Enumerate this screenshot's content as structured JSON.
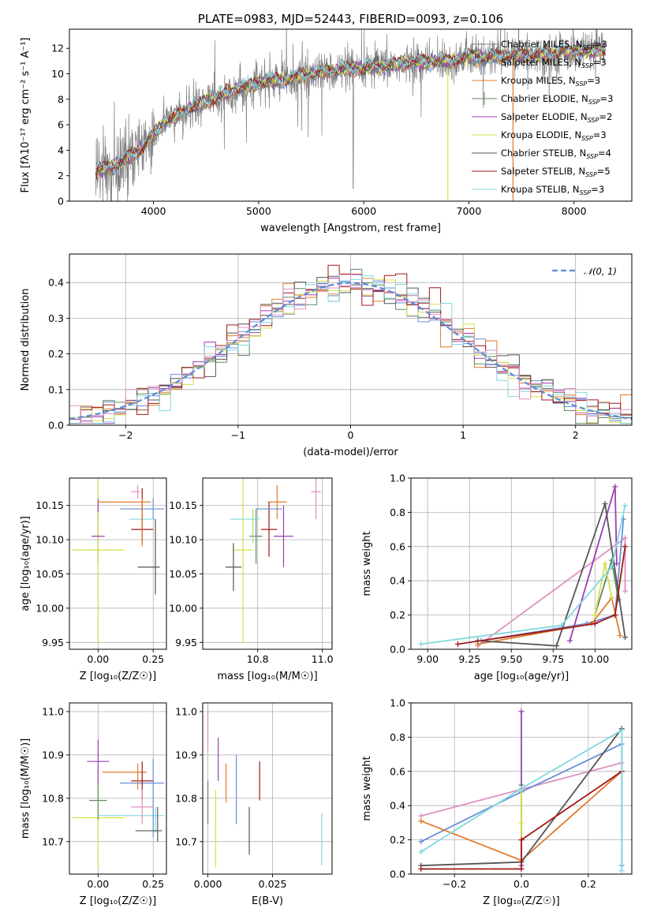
{
  "chart_data": [
    {
      "id": "spectrum",
      "type": "line",
      "title": "PLATE=0983, MJD=52443, FIBERID=0093, z=0.106",
      "xlabel": "wavelength [Angstrom, rest frame]",
      "ylabel": "Flux [fλ10⁻¹⁷ erg cm⁻² s⁻¹ A⁻¹]",
      "xlim": [
        3200,
        8550
      ],
      "ylim": [
        0,
        13.5
      ],
      "xticks": [
        4000,
        5000,
        6000,
        7000,
        8000
      ],
      "yticks": [
        0,
        2,
        4,
        6,
        8,
        10,
        12
      ],
      "grid": false,
      "legend": "upper right",
      "continuum": {
        "x": [
          3450,
          3600,
          3700,
          3800,
          3900,
          4000,
          4100,
          4200,
          4300,
          4400,
          4500,
          4600,
          4700,
          4800,
          4900,
          5000,
          5100,
          5200,
          5300,
          5400,
          5500,
          5600,
          5700,
          5800,
          5900,
          6000,
          6100,
          6200,
          6300,
          6400,
          6500,
          6600,
          6700,
          6800,
          6900,
          7000,
          7100,
          7200,
          7300,
          7400,
          7500,
          7600,
          7700,
          7800,
          7900,
          8000,
          8100,
          8200,
          8300
        ],
        "y": [
          2.3,
          2.7,
          3.1,
          3.6,
          4.2,
          5.2,
          6.2,
          6.6,
          7.0,
          7.5,
          7.8,
          8.1,
          8.4,
          8.8,
          9.0,
          9.3,
          9.4,
          9.5,
          9.6,
          9.8,
          9.9,
          10.1,
          10.2,
          10.3,
          10.3,
          10.4,
          10.5,
          10.6,
          10.7,
          10.8,
          10.9,
          10.9,
          11.0,
          11.0,
          11.1,
          11.3,
          11.2,
          11.3,
          11.4,
          11.4,
          11.5,
          11.5,
          11.5,
          11.6,
          11.7,
          11.7,
          11.8,
          11.8,
          11.9
        ]
      },
      "series": [
        {
          "name": "Chabrier MILES, N$_{SSP}$=3",
          "color": "#7f7f7f"
        },
        {
          "name": "Salpeter MILES, N$_{SSP}$=3",
          "color": "#6688cc"
        },
        {
          "name": "Kroupa MILES, N$_{SSP}$=3",
          "color": "#e07b2c"
        },
        {
          "name": "Chabrier ELODIE, N$_{SSP}$=3",
          "color": "#5f8a5f"
        },
        {
          "name": "Salpeter ELODIE, N$_{SSP}$=2",
          "color": "#9a3fb0"
        },
        {
          "name": "Kroupa ELODIE, N$_{SSP}$=3",
          "color": "#d8e04a"
        },
        {
          "name": "Chabrier STELIB, N$_{SSP}$=4",
          "color": "#555555"
        },
        {
          "name": "Salpeter STELIB, N$_{SSP}$=5",
          "color": "#a01818"
        },
        {
          "name": "Kroupa STELIB, N$_{SSP}$=3",
          "color": "#80d8e0"
        }
      ]
    },
    {
      "id": "residuals",
      "type": "area",
      "xlabel": "(data-model)/error",
      "ylabel": "Normed distribution",
      "xlim": [
        -2.5,
        2.5
      ],
      "ylim": [
        0,
        0.48
      ],
      "xticks": [
        -2,
        -1,
        0,
        1,
        2
      ],
      "yticks": [
        0.0,
        0.1,
        0.2,
        0.3,
        0.4
      ],
      "grid": true,
      "legend": "upper right",
      "reference": {
        "name": "$\\mathcal{N}(0,1)$",
        "color": "#5b8ad8",
        "mean": 0,
        "std": 1
      },
      "bin_width": 0.1,
      "series_colors": [
        "#6a8fd8",
        "#e07b2c",
        "#5f8a5f",
        "#9a3fb0",
        "#d8e04a",
        "#555555",
        "#a01818",
        "#80d8e0",
        "#e090c0"
      ]
    },
    {
      "id": "age_vs_Z",
      "type": "scatter",
      "xlabel": "Z [log₁₀(Z/Z☉)]",
      "ylabel": "age  [log₁₀(age/yr)]",
      "xlim": [
        -0.13,
        0.31
      ],
      "ylim": [
        9.94,
        10.19
      ],
      "xticks": [
        0.0,
        0.25
      ],
      "xticklabels": [
        "0.00",
        "0.25"
      ],
      "yticks": [
        9.95,
        10.0,
        10.05,
        10.1,
        10.15
      ],
      "yticklabels": [
        "9.95",
        "10.00",
        "10.05",
        "10.10",
        "10.15"
      ],
      "grid": true,
      "points": [
        {
          "x": 0.0,
          "y": 10.105,
          "xerr": 0.0,
          "yerr": 0.04,
          "color": "#555555"
        },
        {
          "x": 0.0,
          "y": 10.085,
          "xerr": 0.0,
          "yerr": 0.0,
          "color": "#9a3fb0"
        },
        {
          "x": 0.0,
          "y": 10.085,
          "xerr": 0.05,
          "yerr": 0.135,
          "color": "#d8e04a"
        },
        {
          "x": 0.0,
          "y": 10.085,
          "xerr": 0.12,
          "yerr": 0.0,
          "color": "#d8e04a"
        },
        {
          "x": 0.0,
          "y": 10.105,
          "xerr": 0.03,
          "yerr": 0.0,
          "color": "#9a3fb0"
        },
        {
          "x": 0.0,
          "y": 10.15,
          "xerr": 0.0,
          "yerr": 0.01,
          "color": "#9a3fb0"
        },
        {
          "x": 0.12,
          "y": 10.155,
          "xerr": 0.12,
          "yerr": 0.0,
          "color": "#e07b2c"
        },
        {
          "x": 0.2,
          "y": 10.145,
          "xerr": 0.1,
          "yerr": 0.0,
          "color": "#6a8fd8"
        },
        {
          "x": 0.25,
          "y": 10.145,
          "xerr": 0.0,
          "yerr": 0.015,
          "color": "#6a8fd8"
        },
        {
          "x": 0.2,
          "y": 10.13,
          "xerr": 0.06,
          "yerr": 0.0,
          "color": "#80d8e0"
        },
        {
          "x": 0.2,
          "y": 10.115,
          "xerr": 0.05,
          "yerr": 0.0,
          "color": "#a01818"
        },
        {
          "x": 0.2,
          "y": 10.135,
          "xerr": 0.0,
          "yerr": 0.04,
          "color": "#a01818"
        },
        {
          "x": 0.18,
          "y": 10.17,
          "xerr": 0.0,
          "yerr": 0.01,
          "color": "#e090c0"
        },
        {
          "x": 0.17,
          "y": 10.17,
          "xerr": 0.02,
          "yerr": 0.0,
          "color": "#e090c0"
        },
        {
          "x": 0.23,
          "y": 10.06,
          "xerr": 0.05,
          "yerr": 0.0,
          "color": "#555555"
        },
        {
          "x": 0.26,
          "y": 10.075,
          "xerr": 0.0,
          "yerr": 0.055,
          "color": "#555555"
        },
        {
          "x": 0.2,
          "y": 10.125,
          "xerr": 0.0,
          "yerr": 0.035,
          "color": "#e07b2c"
        }
      ]
    },
    {
      "id": "age_vs_mass",
      "type": "scatter",
      "xlabel": "mass [log₁₀(M/M☉)]",
      "xlim": [
        10.63,
        11.03
      ],
      "ylim": [
        9.94,
        10.19
      ],
      "xticks": [
        10.8,
        11.0
      ],
      "xticklabels": [
        "10.8",
        "11.0"
      ],
      "yticks": [
        9.95,
        10.0,
        10.05,
        10.1,
        10.15
      ],
      "yticklabels": [
        "9.95",
        "10.00",
        "10.05",
        "10.10",
        "10.15"
      ],
      "grid": true,
      "points": [
        {
          "x": 10.755,
          "y": 10.085,
          "xerr": 0.03,
          "yerr": 0.135,
          "color": "#d8e04a"
        },
        {
          "x": 10.795,
          "y": 10.105,
          "xerr": 0.02,
          "yerr": 0.04,
          "color": "#5f8a5f"
        },
        {
          "x": 10.76,
          "y": 10.13,
          "xerr": 0.045,
          "yerr": 0.0,
          "color": "#80d8e0"
        },
        {
          "x": 10.785,
          "y": 10.12,
          "xerr": 0.0,
          "yerr": 0.025,
          "color": "#9fe070"
        },
        {
          "x": 10.725,
          "y": 10.06,
          "xerr": 0.025,
          "yerr": 0.035,
          "color": "#555555"
        },
        {
          "x": 10.835,
          "y": 10.115,
          "xerr": 0.025,
          "yerr": 0.04,
          "color": "#a01818"
        },
        {
          "x": 10.86,
          "y": 10.155,
          "xerr": 0.03,
          "yerr": 0.025,
          "color": "#e07b2c"
        },
        {
          "x": 10.835,
          "y": 10.145,
          "xerr": 0.04,
          "yerr": 0.0,
          "color": "#6a8fd8"
        },
        {
          "x": 10.88,
          "y": 10.105,
          "xerr": 0.03,
          "yerr": 0.045,
          "color": "#9a3fb0"
        },
        {
          "x": 10.98,
          "y": 10.17,
          "xerr": 0.015,
          "yerr": 0.04,
          "color": "#e090c0"
        }
      ]
    },
    {
      "id": "massweight_vs_age",
      "type": "line",
      "xlabel": "age  [log₁₀(age/yr)]",
      "ylabel": "mass weight",
      "xlim": [
        8.9,
        10.22
      ],
      "ylim": [
        0,
        1.0
      ],
      "xticks": [
        9.0,
        9.25,
        9.5,
        9.75,
        10.0
      ],
      "xticklabels": [
        "9.00",
        "9.25",
        "9.50",
        "9.75",
        "10.00"
      ],
      "yticks": [
        0.0,
        0.2,
        0.4,
        0.6,
        0.8,
        1.0
      ],
      "grid": true,
      "series": [
        {
          "color": "#e090c0",
          "x": [
            9.3,
            10.18,
            10.18
          ],
          "y": [
            0.02,
            0.65,
            0.34
          ]
        },
        {
          "color": "#6a8fd8",
          "x": [
            9.32,
            9.95,
            10.12,
            10.17
          ],
          "y": [
            0.05,
            0.15,
            0.2,
            0.76
          ]
        },
        {
          "color": "#e07b2c",
          "x": [
            9.3,
            9.98,
            10.1,
            10.15
          ],
          "y": [
            0.03,
            0.15,
            0.3,
            0.08
          ]
        },
        {
          "color": "#5f8a5f",
          "x": [
            10.0,
            10.1,
            10.14
          ],
          "y": [
            0.2,
            0.52,
            0.29
          ]
        },
        {
          "color": "#9a3fb0",
          "x": [
            9.85,
            10.12,
            10.13
          ],
          "y": [
            0.05,
            0.95,
            0.5
          ]
        },
        {
          "color": "#d8e04a",
          "x": [
            10.0,
            10.06,
            10.1
          ],
          "y": [
            0.2,
            0.5,
            0.3
          ]
        },
        {
          "color": "#555555",
          "x": [
            9.3,
            9.77,
            10.06,
            10.18
          ],
          "y": [
            0.05,
            0.02,
            0.85,
            0.07
          ]
        },
        {
          "color": "#a01818",
          "x": [
            9.18,
            9.8,
            10.0,
            10.12,
            10.18
          ],
          "y": [
            0.03,
            0.12,
            0.15,
            0.2,
            0.6
          ]
        },
        {
          "color": "#80d8e0",
          "x": [
            8.96,
            9.8,
            10.1,
            10.18
          ],
          "y": [
            0.03,
            0.14,
            0.48,
            0.84
          ]
        }
      ]
    },
    {
      "id": "mass_vs_Z",
      "type": "scatter",
      "xlabel": "Z [log₁₀(Z/Z☉)]",
      "ylabel": "mass [log₁₀(M/M☉)]",
      "xlim": [
        -0.13,
        0.31
      ],
      "ylim": [
        10.625,
        11.02
      ],
      "xticks": [
        0.0,
        0.25
      ],
      "xticklabels": [
        "0.00",
        "0.25"
      ],
      "yticks": [
        10.7,
        10.8,
        10.9,
        11.0
      ],
      "yticklabels": [
        "10.7",
        "10.8",
        "10.9",
        "11.0"
      ],
      "grid": true,
      "points": [
        {
          "x": 0.0,
          "y": 10.755,
          "xerr": 0.12,
          "yerr": 0.115,
          "color": "#d8e04a"
        },
        {
          "x": 0.0,
          "y": 10.795,
          "xerr": 0.04,
          "yerr": 0.045,
          "color": "#5f8a5f"
        },
        {
          "x": 0.0,
          "y": 10.885,
          "xerr": 0.05,
          "yerr": 0.05,
          "color": "#9a3fb0"
        },
        {
          "x": 0.12,
          "y": 10.86,
          "xerr": 0.1,
          "yerr": 0.0,
          "color": "#e07b2c"
        },
        {
          "x": 0.2,
          "y": 10.835,
          "xerr": 0.1,
          "yerr": 0.0,
          "color": "#6a8fd8"
        },
        {
          "x": 0.2,
          "y": 10.84,
          "xerr": 0.05,
          "yerr": 0.045,
          "color": "#a01818"
        },
        {
          "x": 0.18,
          "y": 10.85,
          "xerr": 0.0,
          "yerr": 0.03,
          "color": "#e07b2c"
        },
        {
          "x": 0.15,
          "y": 10.76,
          "xerr": 0.15,
          "yerr": 0.0,
          "color": "#80d8e0"
        },
        {
          "x": 0.25,
          "y": 10.8,
          "xerr": 0.0,
          "yerr": 0.09,
          "color": "#6a8fd8"
        },
        {
          "x": 0.26,
          "y": 10.75,
          "xerr": 0.0,
          "yerr": 0.03,
          "color": "#80d8e0"
        },
        {
          "x": 0.2,
          "y": 10.78,
          "xerr": 0.05,
          "yerr": 0.04,
          "color": "#e090c0"
        },
        {
          "x": 0.23,
          "y": 10.725,
          "xerr": 0.06,
          "yerr": 0.0,
          "color": "#555555"
        },
        {
          "x": 0.27,
          "y": 10.74,
          "xerr": 0.0,
          "yerr": 0.04,
          "color": "#555555"
        }
      ]
    },
    {
      "id": "mass_vs_EBV",
      "type": "scatter",
      "xlabel": "E(B-V)",
      "xlim": [
        -0.002,
        0.048
      ],
      "ylim": [
        10.625,
        11.02
      ],
      "xticks": [
        0.0,
        0.025
      ],
      "xticklabels": [
        "0.000",
        "0.025"
      ],
      "yticks": [
        10.7,
        10.8,
        10.9,
        11.0
      ],
      "yticklabels": [
        "10.7",
        "10.8",
        "10.9",
        "11.0"
      ],
      "grid": true,
      "points": [
        {
          "x": 0.0,
          "y": 10.79,
          "xerr": 0.0,
          "yerr": 0.05,
          "color": "#5f8a5f"
        },
        {
          "x": 0.0,
          "y": 10.96,
          "xerr": 0.0,
          "yerr": 0.05,
          "color": "#e090c0"
        },
        {
          "x": 0.003,
          "y": 10.73,
          "xerr": 0.0,
          "yerr": 0.09,
          "color": "#d8e04a"
        },
        {
          "x": 0.004,
          "y": 10.89,
          "xerr": 0.0,
          "yerr": 0.05,
          "color": "#9a3fb0"
        },
        {
          "x": 0.007,
          "y": 10.835,
          "xerr": 0.0,
          "yerr": 0.045,
          "color": "#e07b2c"
        },
        {
          "x": 0.011,
          "y": 10.82,
          "xerr": 0.0,
          "yerr": 0.08,
          "color": "#6a8fd8"
        },
        {
          "x": 0.016,
          "y": 10.725,
          "xerr": 0.0,
          "yerr": 0.055,
          "color": "#555555"
        },
        {
          "x": 0.02,
          "y": 10.84,
          "xerr": 0.0,
          "yerr": 0.045,
          "color": "#a01818"
        },
        {
          "x": 0.044,
          "y": 10.705,
          "xerr": 0.0,
          "yerr": 0.06,
          "color": "#80d8e0"
        }
      ]
    },
    {
      "id": "massweight_vs_Z",
      "type": "line",
      "xlabel": "Z [log₁₀(Z/Z☉)]",
      "ylabel": "mass weight",
      "xlim": [
        -0.33,
        0.33
      ],
      "ylim": [
        0,
        1.0
      ],
      "xticks": [
        -0.2,
        0.0,
        0.2
      ],
      "xticklabels": [
        "−0.2",
        "0.0",
        "0.2"
      ],
      "yticks": [
        0.0,
        0.2,
        0.4,
        0.6,
        0.8,
        1.0
      ],
      "grid": true,
      "series": [
        {
          "color": "#e090c0",
          "x": [
            -0.3,
            0.3
          ],
          "y": [
            0.34,
            0.65
          ]
        },
        {
          "color": "#6a8fd8",
          "x": [
            -0.3,
            0.0,
            0.3,
            0.3
          ],
          "y": [
            0.19,
            0.48,
            0.76,
            0.05
          ]
        },
        {
          "color": "#e07b2c",
          "x": [
            -0.3,
            0.0,
            0.3
          ],
          "y": [
            0.31,
            0.08,
            0.6
          ]
        },
        {
          "color": "#5f8a5f",
          "x": [
            0.0,
            0.0
          ],
          "y": [
            0.2,
            0.52
          ]
        },
        {
          "color": "#9a3fb0",
          "x": [
            0.0,
            0.0
          ],
          "y": [
            0.05,
            0.95
          ]
        },
        {
          "color": "#d8e04a",
          "x": [
            0.0,
            0.0,
            0.0
          ],
          "y": [
            0.2,
            0.5,
            0.3
          ]
        },
        {
          "color": "#555555",
          "x": [
            -0.3,
            0.0,
            0.3
          ],
          "y": [
            0.05,
            0.07,
            0.85
          ]
        },
        {
          "color": "#a01818",
          "x": [
            -0.3,
            0.0,
            0.0,
            0.3
          ],
          "y": [
            0.03,
            0.03,
            0.2,
            0.6
          ]
        },
        {
          "color": "#80d8e0",
          "x": [
            -0.3,
            0.0,
            0.3,
            0.3
          ],
          "y": [
            0.13,
            0.5,
            0.84,
            0.02
          ]
        }
      ]
    }
  ]
}
